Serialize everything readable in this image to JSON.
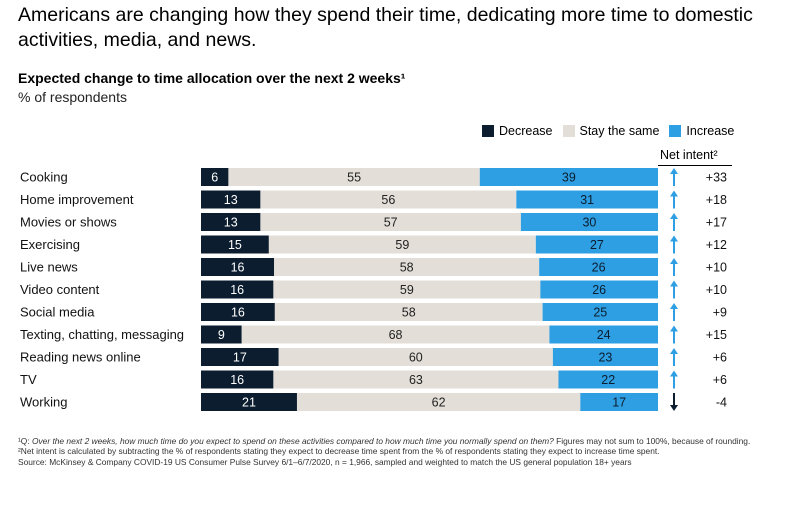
{
  "headline": "Americans are changing how they spend their time, dedicating more time to domestic activities, media, and news.",
  "subtitle": "Expected change to time allocation over the next 2 weeks¹",
  "unit": "% of respondents",
  "net_intent_header": "Net intent²",
  "colors": {
    "decrease": "#0b1d2e",
    "stay": "#e3dfd8",
    "increase": "#2f9fe4",
    "arrow_up": "#2f9fe4",
    "arrow_down": "#0b1d2e"
  },
  "chart_data": {
    "type": "bar",
    "orientation": "horizontal",
    "stacked": true,
    "categories": [
      "Cooking",
      "Home improvement",
      "Movies or shows",
      "Exercising",
      "Live news",
      "Video content",
      "Social media",
      "Texting, chatting, messaging",
      "Reading news online",
      "TV",
      "Working"
    ],
    "series": [
      {
        "name": "Decrease",
        "values": [
          6,
          13,
          13,
          15,
          16,
          16,
          16,
          9,
          17,
          16,
          21
        ]
      },
      {
        "name": "Stay the same",
        "values": [
          55,
          56,
          57,
          59,
          58,
          59,
          58,
          68,
          60,
          63,
          62
        ]
      },
      {
        "name": "Increase",
        "values": [
          39,
          31,
          30,
          27,
          26,
          26,
          25,
          24,
          23,
          22,
          17
        ]
      }
    ],
    "net_intent": [
      "+33",
      "+18",
      "+17",
      "+12",
      "+10",
      "+10",
      "+9",
      "+15",
      "+6",
      "+6",
      "-4"
    ],
    "legend_position": "top-right",
    "grid": false
  },
  "footnotes": {
    "note1_marker": "¹Q: ",
    "note1_italic": "Over the next 2 weeks, how much time do you expect to spend on these activities compared to how much time you normally spend on them?",
    "note1_rest": " Figures may not sum to 100%, because of rounding.",
    "note2": "²Net intent is calculated by subtracting the % of respondents stating they expect to decrease time spent from the % of respondents stating they expect to increase time spent.",
    "source": "Source: McKinsey & Company COVID-19 US Consumer Pulse Survey 6/1–6/7/2020, n = 1,966, sampled and weighted to match the US general population 18+ years"
  }
}
